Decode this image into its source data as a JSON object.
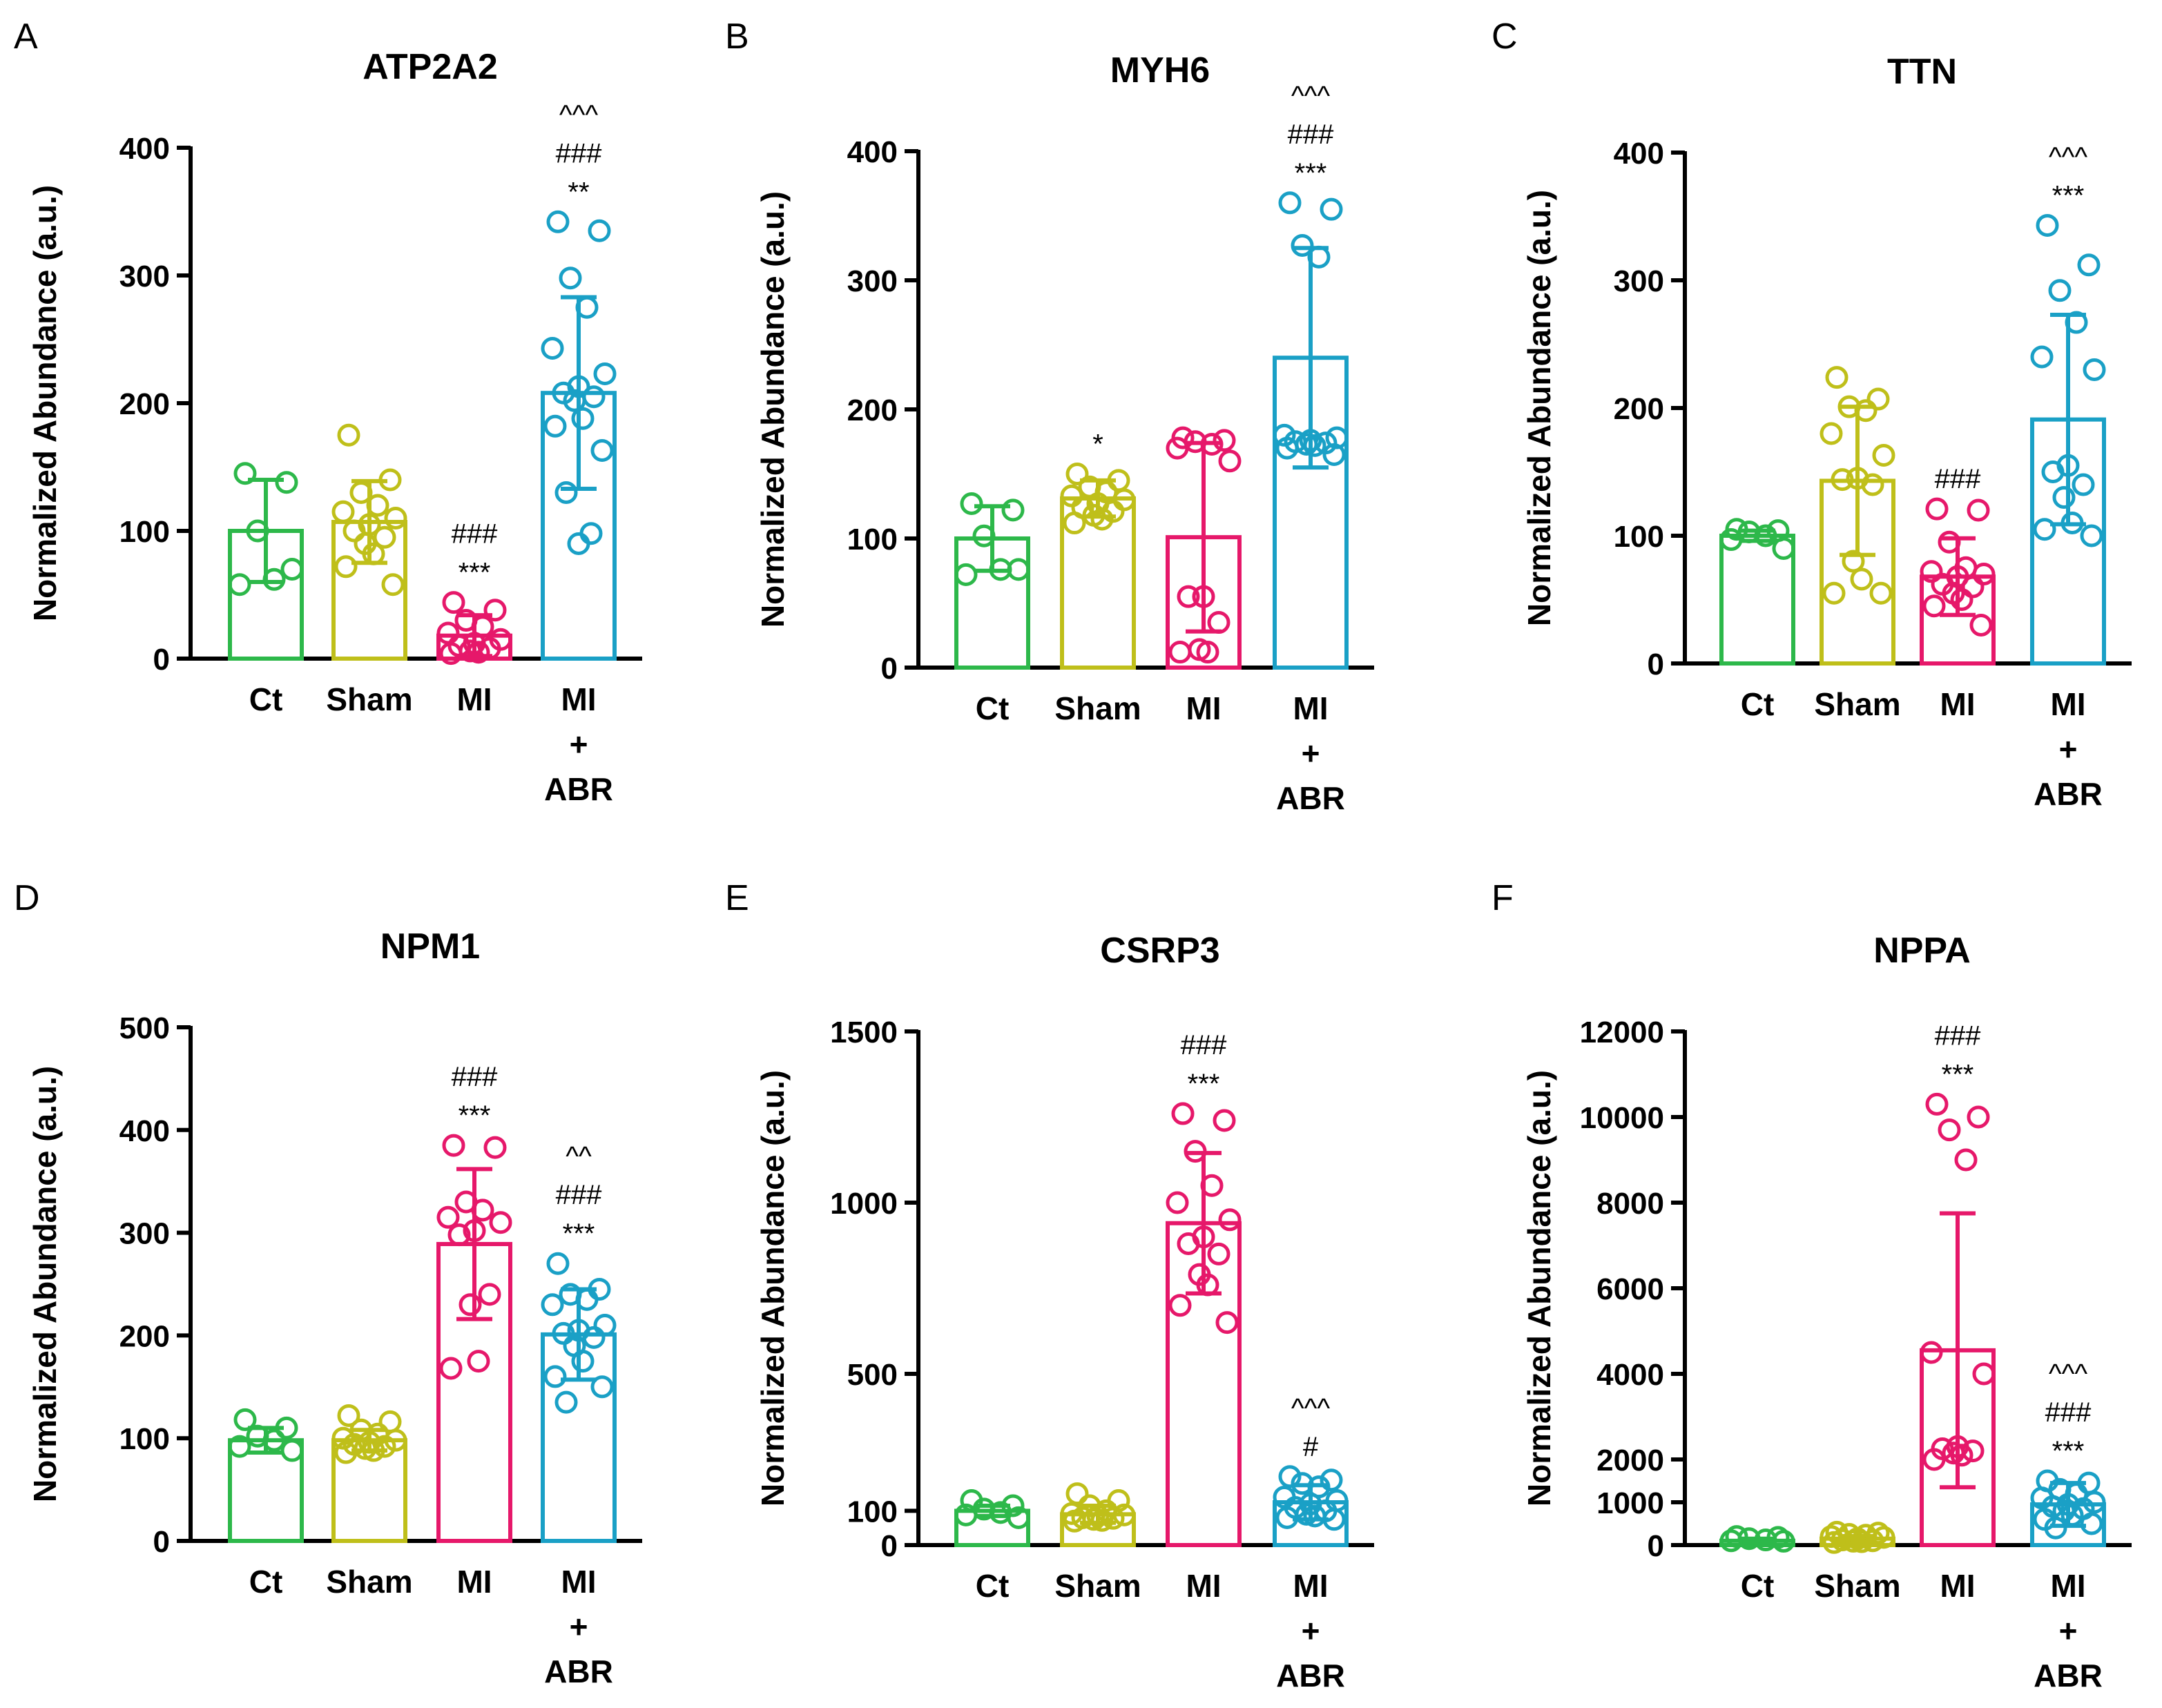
{
  "figure": {
    "ylabel_common": "Normalized Abundance (a.u.)",
    "group_colors": [
      "#2DB84A",
      "#BFBF1A",
      "#E6186A",
      "#1AA0C6"
    ]
  },
  "chart_data": [
    {
      "panel": "A",
      "type": "bar",
      "title": "ATP2A2",
      "ylabel": "Normalized Abundance (a.u.)",
      "categories": [
        [
          "Ct"
        ],
        [
          "Sham"
        ],
        [
          "MI"
        ],
        [
          "MI",
          "+",
          "ABR"
        ]
      ],
      "ylim": [
        0,
        400
      ],
      "ticks": [
        0,
        100,
        200,
        300,
        400
      ],
      "means": [
        100,
        107,
        18,
        208
      ],
      "sd": [
        40,
        32,
        16,
        75
      ],
      "points": [
        [
          145,
          138,
          100,
          62,
          58,
          70
        ],
        [
          175,
          140,
          130,
          120,
          115,
          110,
          105,
          100,
          95,
          90,
          82,
          72,
          58
        ],
        [
          44,
          38,
          30,
          25,
          20,
          15,
          12,
          10,
          8,
          6,
          5,
          4
        ],
        [
          342,
          335,
          298,
          275,
          243,
          223,
          213,
          208,
          205,
          202,
          188,
          182,
          163,
          130,
          98,
          90
        ]
      ],
      "annotations": [
        [],
        [],
        [
          "###",
          "***"
        ],
        [
          "^^^",
          "###",
          "**"
        ]
      ]
    },
    {
      "panel": "B",
      "type": "bar",
      "title": "MYH6",
      "ylabel": "Normalized Abundance (a.u.)",
      "categories": [
        [
          "Ct"
        ],
        [
          "Sham"
        ],
        [
          "MI"
        ],
        [
          "MI",
          "+",
          "ABR"
        ]
      ],
      "ylim": [
        0,
        400
      ],
      "ticks": [
        0,
        100,
        200,
        300,
        400
      ],
      "means": [
        100,
        131,
        101,
        240
      ],
      "sd": [
        25,
        14,
        73,
        85
      ],
      "points": [
        [
          127,
          122,
          102,
          76,
          72,
          76
        ],
        [
          150,
          145,
          140,
          136,
          133,
          130,
          127,
          124,
          121,
          118,
          115,
          112
        ],
        [
          178,
          176,
          175,
          173,
          170,
          160,
          55,
          55,
          35,
          14,
          12,
          12
        ],
        [
          360,
          355,
          327,
          318,
          180,
          178,
          176,
          175,
          174,
          173,
          172,
          170,
          165
        ]
      ],
      "annotations": [
        [],
        [
          "*"
        ],
        [],
        [
          "^^^",
          "###",
          "***"
        ]
      ]
    },
    {
      "panel": "C",
      "type": "bar",
      "title": "TTN",
      "ylabel": "Normalized Abundance (a.u.)",
      "categories": [
        [
          "Ct"
        ],
        [
          "Sham"
        ],
        [
          "MI"
        ],
        [
          "MI",
          "+",
          "ABR"
        ]
      ],
      "ylim": [
        0,
        400
      ],
      "ticks": [
        0,
        100,
        200,
        300,
        400
      ],
      "means": [
        100,
        143,
        68,
        191
      ],
      "sd": [
        4,
        58,
        30,
        82
      ],
      "points": [
        [
          105,
          104,
          103,
          100,
          97,
          90
        ],
        [
          224,
          207,
          201,
          198,
          180,
          163,
          145,
          144,
          140,
          80,
          66,
          55,
          55
        ],
        [
          121,
          120,
          95,
          75,
          72,
          70,
          68,
          62,
          60,
          55,
          50,
          45,
          30
        ],
        [
          343,
          312,
          292,
          267,
          240,
          230,
          155,
          150,
          140,
          130,
          110,
          105,
          100
        ]
      ],
      "annotations": [
        [],
        [],
        [
          "###"
        ],
        [
          "^^^",
          "***"
        ]
      ]
    },
    {
      "panel": "D",
      "type": "bar",
      "title": "NPM1",
      "ylabel": "Normalized Abundance (a.u.)",
      "categories": [
        [
          "Ct"
        ],
        [
          "Sham"
        ],
        [
          "MI"
        ],
        [
          "MI",
          "+",
          "ABR"
        ]
      ],
      "ylim": [
        0,
        500
      ],
      "ticks": [
        0,
        100,
        200,
        300,
        400,
        500
      ],
      "means": [
        98,
        98,
        289,
        201
      ],
      "sd": [
        12,
        10,
        73,
        44
      ],
      "points": [
        [
          118,
          110,
          102,
          98,
          92,
          88
        ],
        [
          122,
          116,
          108,
          104,
          100,
          98,
          96,
          94,
          92,
          90,
          88,
          86
        ],
        [
          385,
          383,
          330,
          322,
          315,
          310,
          302,
          298,
          240,
          230,
          175,
          168
        ],
        [
          270,
          245,
          240,
          235,
          230,
          210,
          205,
          202,
          198,
          190,
          175,
          160,
          150,
          135
        ]
      ],
      "annotations": [
        [],
        [],
        [
          "###",
          "***"
        ],
        [
          "^^",
          "###",
          "***"
        ]
      ]
    },
    {
      "panel": "E",
      "type": "bar",
      "title": "CSRP3",
      "ylabel": "Normalized Abundance (a.u.)",
      "categories": [
        [
          "Ct"
        ],
        [
          "Sham"
        ],
        [
          "MI"
        ],
        [
          "MI",
          "+",
          "ABR"
        ]
      ],
      "ylim": [
        0,
        1500
      ],
      "ticks": [
        0,
        100,
        500,
        1000,
        1500
      ],
      "means": [
        100,
        90,
        940,
        125
      ],
      "sd": [
        15,
        25,
        205,
        50
      ],
      "points": [
        [
          130,
          115,
          105,
          95,
          88,
          80
        ],
        [
          150,
          130,
          115,
          100,
          92,
          88,
          85,
          80,
          78,
          75,
          72,
          70
        ],
        [
          1260,
          1240,
          1150,
          1050,
          1000,
          950,
          900,
          880,
          850,
          790,
          760,
          700,
          650
        ],
        [
          200,
          190,
          180,
          170,
          140,
          130,
          120,
          110,
          100,
          90,
          85,
          80,
          75
        ]
      ],
      "annotations": [
        [],
        [],
        [
          "###",
          "***"
        ],
        [
          "^^^",
          "#"
        ]
      ]
    },
    {
      "panel": "F",
      "type": "bar",
      "title": "NPPA",
      "ylabel": "Normalized Abundance (a.u.)",
      "categories": [
        [
          "Ct"
        ],
        [
          "Sham"
        ],
        [
          "MI"
        ],
        [
          "MI",
          "+",
          "ABR"
        ]
      ],
      "ylim": [
        0,
        12000
      ],
      "ticks": [
        0,
        1000,
        2000,
        4000,
        6000,
        8000,
        10000,
        12000
      ],
      "means": [
        100,
        150,
        4550,
        950
      ],
      "sd": [
        50,
        60,
        3200,
        500
      ],
      "points": [
        [
          200,
          180,
          150,
          120,
          100,
          90
        ],
        [
          300,
          280,
          250,
          230,
          200,
          180,
          150,
          120,
          100,
          90,
          80,
          60
        ],
        [
          10300,
          10000,
          9700,
          9000,
          4500,
          4000,
          2300,
          2250,
          2200,
          2150,
          2100,
          2000
        ],
        [
          1500,
          1450,
          1300,
          1200,
          1100,
          1000,
          950,
          900,
          850,
          800,
          700,
          600,
          500,
          400
        ]
      ],
      "annotations": [
        [],
        [],
        [
          "###",
          "***"
        ],
        [
          "^^^",
          "###",
          "***"
        ]
      ]
    }
  ],
  "panel_labels": [
    "A",
    "B",
    "C",
    "D",
    "E",
    "F"
  ]
}
